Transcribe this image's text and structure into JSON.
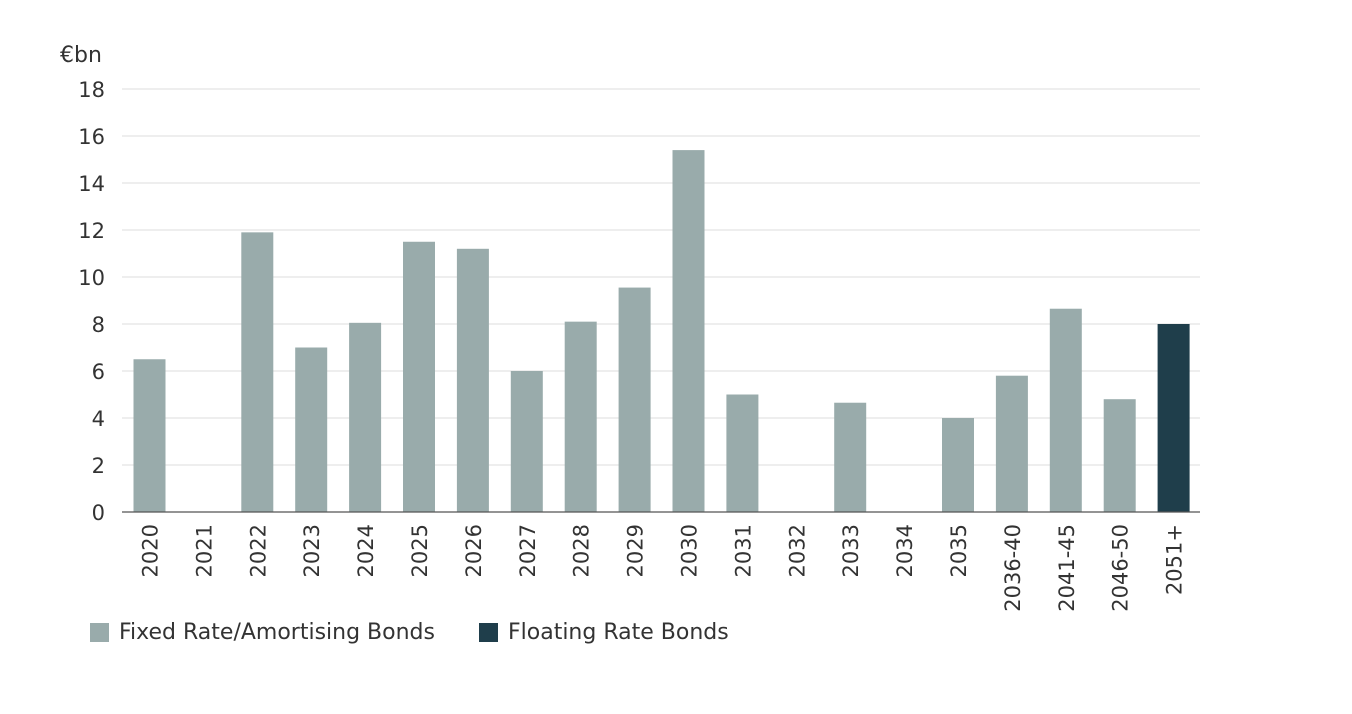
{
  "chart_data": {
    "type": "bar",
    "title": "",
    "xlabel": "",
    "ylabel": "€bn",
    "ylim": [
      0,
      18
    ],
    "yticks": [
      0,
      2,
      4,
      6,
      8,
      10,
      12,
      14,
      16,
      18
    ],
    "grid": true,
    "legend_position": "bottom-left",
    "categories": [
      "2020",
      "2021",
      "2022",
      "2023",
      "2024",
      "2025",
      "2026",
      "2027",
      "2028",
      "2029",
      "2030",
      "2031",
      "2032",
      "2033",
      "2034",
      "2035",
      "2036-40",
      "2041-45",
      "2046-50",
      "2051+"
    ],
    "series": [
      {
        "name": "Fixed Rate/Amortising Bonds",
        "color": "#99abab",
        "values": [
          6.5,
          0,
          11.9,
          7.0,
          8.05,
          11.5,
          11.2,
          6.0,
          8.1,
          9.55,
          15.4,
          5.0,
          0,
          4.65,
          0,
          4.0,
          5.8,
          8.65,
          4.8,
          0
        ]
      },
      {
        "name": "Floating Rate Bonds",
        "color": "#1f3e4b",
        "values": [
          0,
          0,
          0,
          0,
          0,
          0,
          0,
          0,
          0,
          0,
          0,
          0,
          0,
          0,
          0,
          0,
          0,
          0,
          0,
          8.0
        ]
      }
    ]
  }
}
